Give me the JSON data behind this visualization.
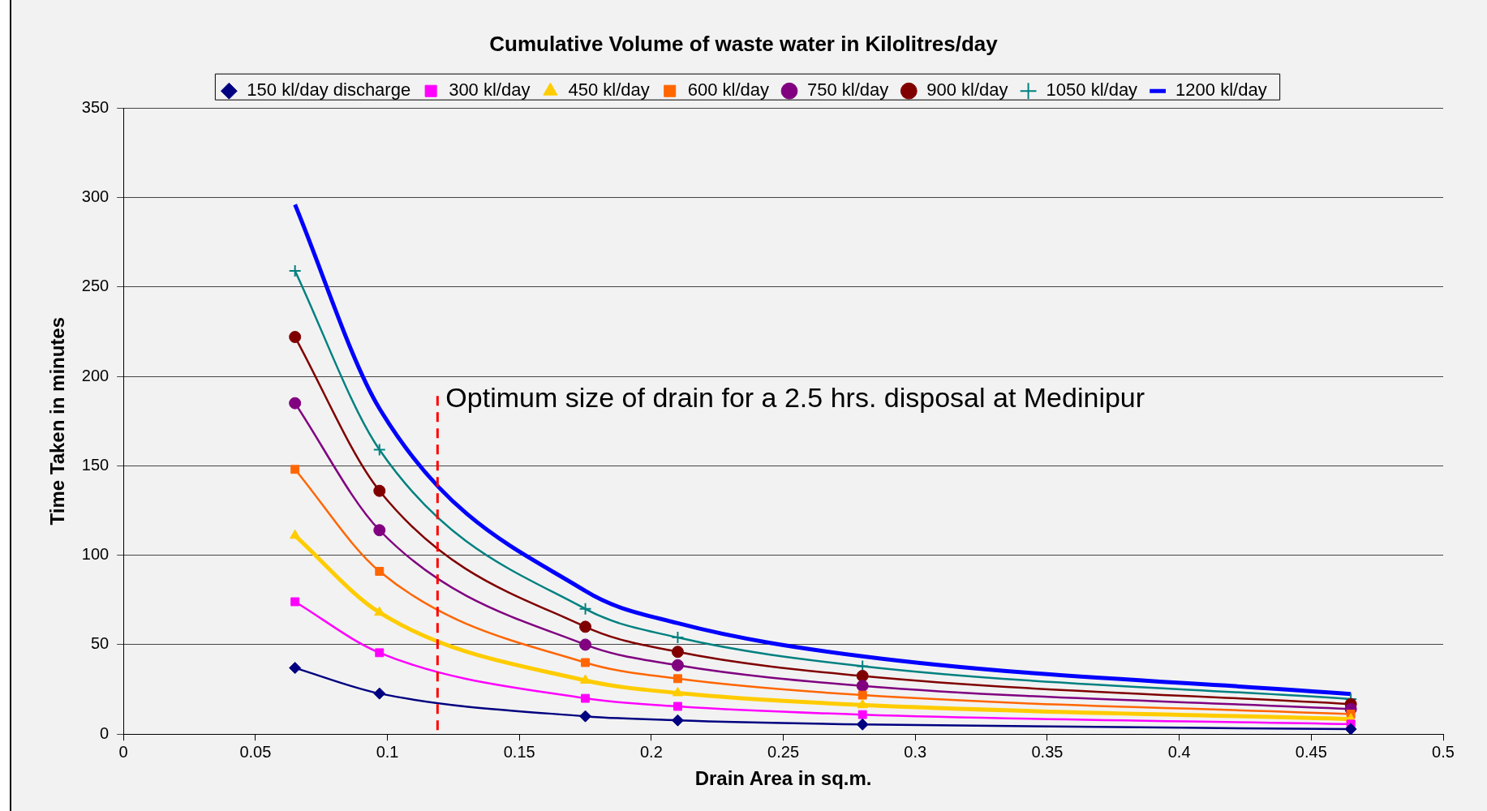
{
  "chart_data": {
    "type": "line",
    "title": "Cumulative Volume of waste water in Kilolitres/day",
    "xlabel": "Drain Area in sq.m.",
    "ylabel": "Time Taken in minutes",
    "x": [
      0.065,
      0.097,
      0.175,
      0.21,
      0.28,
      0.465
    ],
    "series": [
      {
        "name": "150 kl/day discharge",
        "color": "#000080",
        "marker": "diamond",
        "values": [
          37,
          22.7,
          10,
          7.7,
          5.4,
          2.8
        ]
      },
      {
        "name": "300 kl/day",
        "color": "#ff00ff",
        "marker": "square",
        "values": [
          74,
          45.5,
          20,
          15.5,
          10.9,
          5.6
        ]
      },
      {
        "name": "450 kl/day",
        "color": "#ffcc00",
        "marker": "triangle",
        "values": [
          111,
          68,
          30,
          23,
          16.3,
          8.4
        ]
      },
      {
        "name": "600 kl/day",
        "color": "#ff6600",
        "marker": "square",
        "values": [
          148,
          91,
          40,
          31,
          21.8,
          11.2
        ]
      },
      {
        "name": "750 kl/day",
        "color": "#800080",
        "marker": "circle",
        "values": [
          185,
          114,
          50,
          38.5,
          27,
          14
        ]
      },
      {
        "name": "900 kl/day",
        "color": "#800000",
        "marker": "circle",
        "values": [
          222,
          136,
          60,
          46,
          32.5,
          16.8
        ]
      },
      {
        "name": "1050 kl/day",
        "color": "#008080",
        "marker": "cross",
        "values": [
          259,
          159,
          70,
          54,
          38,
          19.6
        ]
      },
      {
        "name": "1200 kl/day",
        "color": "#0000ff",
        "marker": "none",
        "values": [
          296,
          182,
          80,
          62,
          43.5,
          22.4
        ]
      }
    ],
    "xlim": [
      0,
      0.5
    ],
    "xticks": [
      0,
      0.05,
      0.1,
      0.15,
      0.2,
      0.25,
      0.3,
      0.35,
      0.4,
      0.45,
      0.5
    ],
    "ylim": [
      0,
      350
    ],
    "yticks": [
      0,
      50,
      100,
      150,
      200,
      250,
      300,
      350
    ],
    "grid": "y",
    "legend": "top",
    "ref_lines": [
      {
        "axis": "x",
        "value": 0.119,
        "label": "Optimum size of drain for a 2.5 hrs. disposal at Medinipur",
        "color": "#ff0000",
        "line_style": "dashed"
      }
    ]
  }
}
